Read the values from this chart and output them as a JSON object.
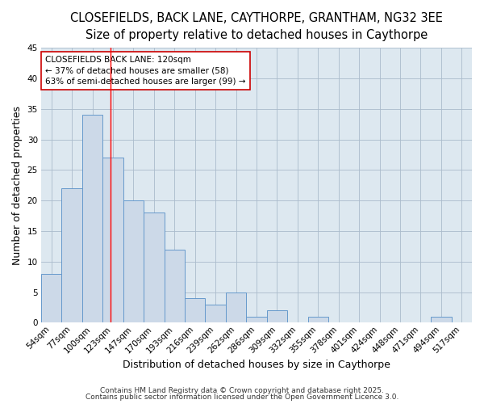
{
  "title_line1": "CLOSEFIELDS, BACK LANE, CAYTHORPE, GRANTHAM, NG32 3EE",
  "title_line2": "Size of property relative to detached houses in Caythorpe",
  "xlabel": "Distribution of detached houses by size in Caythorpe",
  "ylabel": "Number of detached properties",
  "bin_labels": [
    "54sqm",
    "77sqm",
    "100sqm",
    "123sqm",
    "147sqm",
    "170sqm",
    "193sqm",
    "216sqm",
    "239sqm",
    "262sqm",
    "286sqm",
    "309sqm",
    "332sqm",
    "355sqm",
    "378sqm",
    "401sqm",
    "424sqm",
    "448sqm",
    "471sqm",
    "494sqm",
    "517sqm"
  ],
  "bar_heights": [
    8,
    22,
    34,
    27,
    20,
    18,
    12,
    4,
    3,
    5,
    1,
    2,
    0,
    1,
    0,
    0,
    0,
    0,
    0,
    1,
    0
  ],
  "bar_color": "#ccd9e8",
  "bar_edge_color": "#6699cc",
  "bar_edge_width": 0.7,
  "grid_color": "#aabbcc",
  "background_color": "#ffffff",
  "plot_bg_color": "#dde8f0",
  "ylim": [
    0,
    45
  ],
  "yticks": [
    0,
    5,
    10,
    15,
    20,
    25,
    30,
    35,
    40,
    45
  ],
  "red_line_index": 2.87,
  "annotation_title": "CLOSEFIELDS BACK LANE: 120sqm",
  "annotation_line2": "← 37% of detached houses are smaller (58)",
  "annotation_line3": "63% of semi-detached houses are larger (99) →",
  "annotation_box_facecolor": "#ffffff",
  "annotation_box_edgecolor": "#cc0000",
  "footer_line1": "Contains HM Land Registry data © Crown copyright and database right 2025.",
  "footer_line2": "Contains public sector information licensed under the Open Government Licence 3.0.",
  "title_fontsize": 10.5,
  "subtitle_fontsize": 9.5,
  "axis_label_fontsize": 9,
  "tick_fontsize": 7.5,
  "annotation_fontsize": 7.5,
  "footer_fontsize": 6.5
}
